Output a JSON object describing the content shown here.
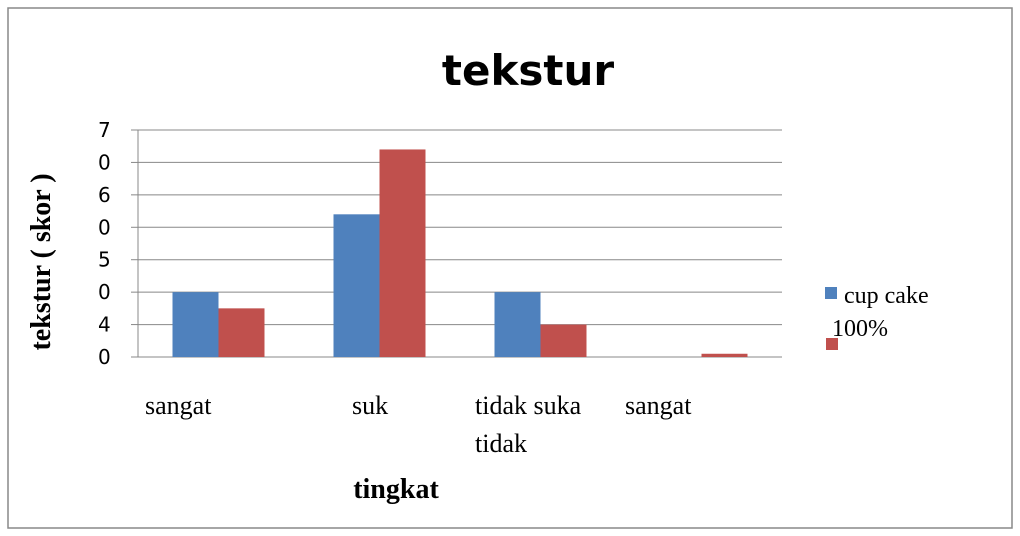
{
  "chart_data": {
    "type": "bar",
    "title": "tekstur",
    "x_label": "tingkat",
    "y_label": "tekstur ( skor )",
    "categories": [
      "sangat",
      "suk",
      "tidak suka",
      "sangat tidak"
    ],
    "series": [
      {
        "name": "cup cake",
        "color": "#4f81bd",
        "values": [
          2,
          4.4,
          2,
          0
        ]
      },
      {
        "name": "100%",
        "color": "#c0504d",
        "values": [
          1.5,
          6.4,
          1,
          0.1
        ]
      }
    ],
    "ylim": [
      0,
      7
    ],
    "yticks": [
      0,
      {
        "value": 1,
        "label": "4"
      },
      {
        "value": 2,
        "label": "0"
      },
      {
        "value": 3,
        "label": "5"
      },
      {
        "value": 4,
        "label": "0"
      },
      {
        "value": 5,
        "label": "6"
      },
      {
        "value": 6,
        "label": "0"
      },
      {
        "value": 7,
        "label": "7"
      }
    ],
    "grid": true,
    "legend": "right"
  }
}
